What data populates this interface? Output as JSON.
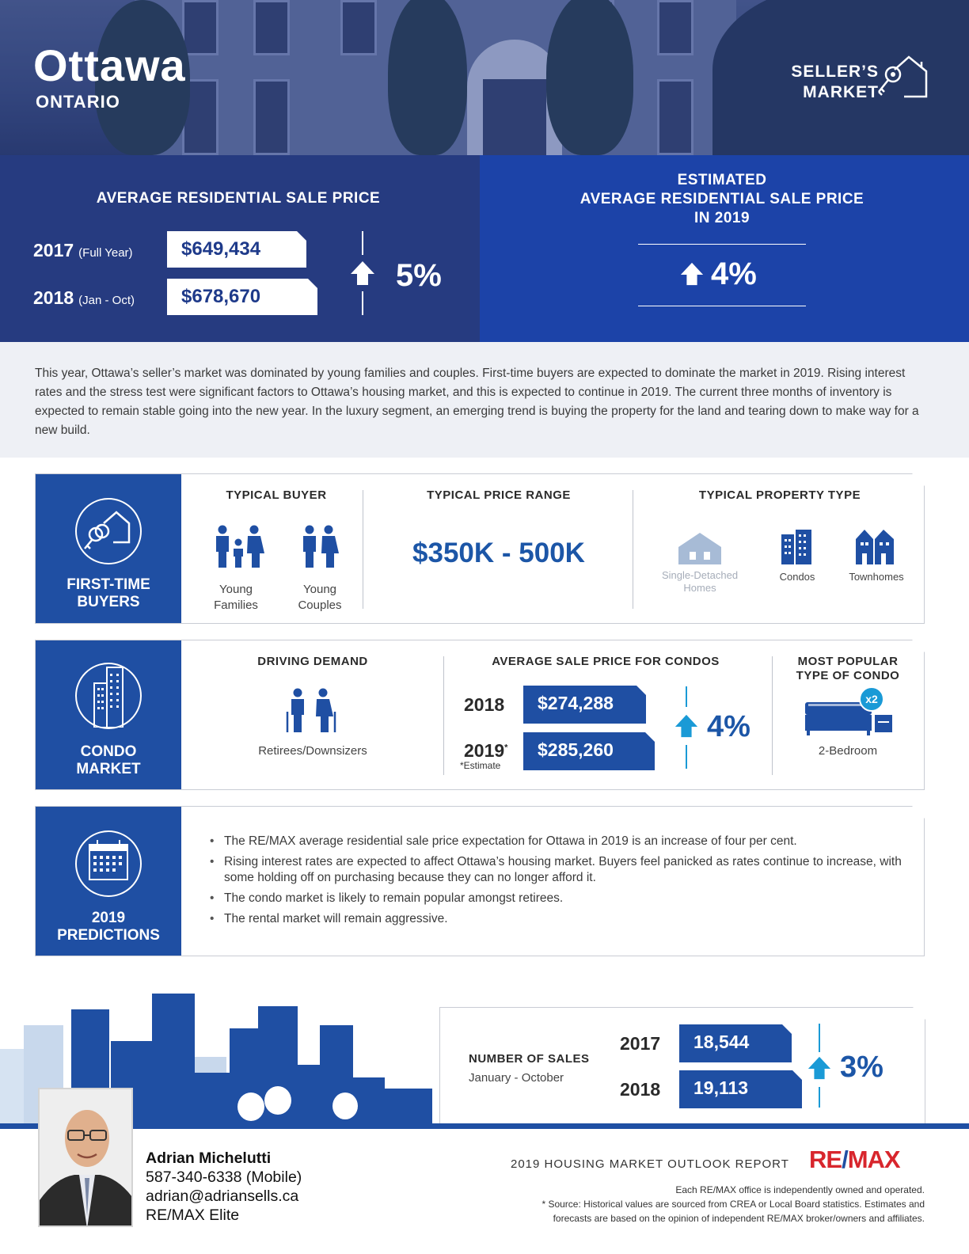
{
  "hero": {
    "city": "Ottawa",
    "province": "ONTARIO",
    "market_line1": "SELLER’S",
    "market_line2": "MARKET",
    "market_icon": "key-house-icon"
  },
  "avg_price": {
    "title": "AVERAGE RESIDENTIAL SALE PRICE",
    "rows": [
      {
        "year": "2017",
        "period": "(Full Year)",
        "value": "$649,434"
      },
      {
        "year": "2018",
        "period": "(Jan - Oct)",
        "value": "$678,670"
      }
    ],
    "change": "5%",
    "direction": "up"
  },
  "estimated": {
    "title_line1": "ESTIMATED",
    "title_line2": "AVERAGE RESIDENTIAL SALE PRICE",
    "title_line3": "IN 2019",
    "change": "4%",
    "direction": "up"
  },
  "summary": "This year, Ottawa’s seller’s market was dominated by young families and couples. First-time buyers are expected to dominate the market in 2019. Rising interest rates and the stress test were significant factors to Ottawa’s housing market, and this is expected to continue in 2019. The current three months of inventory is expected to remain stable going into the new year. In the luxury segment, an emerging trend is buying the property for the land and tearing down to make way for a new build.",
  "first_time": {
    "label_line1": "FIRST-TIME",
    "label_line2": "BUYERS",
    "typical_buyer_head": "TYPICAL BUYER",
    "buyers": [
      {
        "line1": "Young",
        "line2": "Families",
        "icon": "family-icon"
      },
      {
        "line1": "Young",
        "line2": "Couples",
        "icon": "couple-icon"
      }
    ],
    "price_range_head": "TYPICAL PRICE RANGE",
    "price_range": "$350K - 500K",
    "property_head": "TYPICAL PROPERTY TYPE",
    "property_types": [
      {
        "line1": "Single-Detached",
        "line2": "Homes",
        "icon": "house-icon",
        "muted": true
      },
      {
        "line1": "Condos",
        "line2": "",
        "icon": "condo-building-icon",
        "muted": false
      },
      {
        "line1": "Townhomes",
        "line2": "",
        "icon": "townhome-icon",
        "muted": false
      }
    ]
  },
  "condo": {
    "label_line1": "CONDO",
    "label_line2": "MARKET",
    "demand_head": "DRIVING DEMAND",
    "demand": "Retirees/Downsizers",
    "avg_head": "AVERAGE SALE PRICE FOR CONDOS",
    "rows": [
      {
        "year": "2018",
        "value": "$274,288"
      },
      {
        "year": "2019",
        "value": "$285,260"
      }
    ],
    "asterisk": "*",
    "estimate_note": "*Estimate",
    "change": "4%",
    "popular_head_line1": "MOST POPULAR",
    "popular_head_line2": "TYPE OF CONDO",
    "popular_badge": "x2",
    "popular": "2-Bedroom"
  },
  "predictions": {
    "label_line1": "2019",
    "label_line2": "PREDICTIONS",
    "items": [
      "The RE/MAX average residential sale price expectation for Ottawa in 2019 is an increase of four per cent.",
      "Rising interest rates are expected to affect Ottawa’s housing market. Buyers feel panicked as rates continue to increase, with some holding off on purchasing because they can no longer afford it.",
      "The condo market is likely to remain popular amongst retirees.",
      "The rental market will remain aggressive."
    ]
  },
  "sales": {
    "title": "NUMBER OF SALES",
    "period": "January - October",
    "rows": [
      {
        "year": "2017",
        "value": "18,544"
      },
      {
        "year": "2018",
        "value": "19,113"
      }
    ],
    "change": "3%"
  },
  "agent": {
    "name": "Adrian Michelutti",
    "phone": "587-340-6338 (Mobile)",
    "email": "adrian@adriansells.ca",
    "office": "RE/MAX Elite"
  },
  "footer": {
    "report": "2019 HOUSING MARKET OUTLOOK REPORT",
    "brand_left": "RE",
    "brand_slash": "/",
    "brand_right": "MAX",
    "disclaimer_line1": "Each RE/MAX office is independently owned and operated.",
    "disclaimer_line2": "* Source: Historical values are sourced from CREA or Local Board statistics. Estimates and",
    "disclaimer_line3": "forecasts are based on the opinion of independent RE/MAX broker/owners and affiliates."
  },
  "colors": {
    "navy": "#263b80",
    "royal": "#1c43a8",
    "card_blue": "#1f4fa3",
    "accent_cyan": "#1a9ad6",
    "brand_red": "#d8262d"
  }
}
